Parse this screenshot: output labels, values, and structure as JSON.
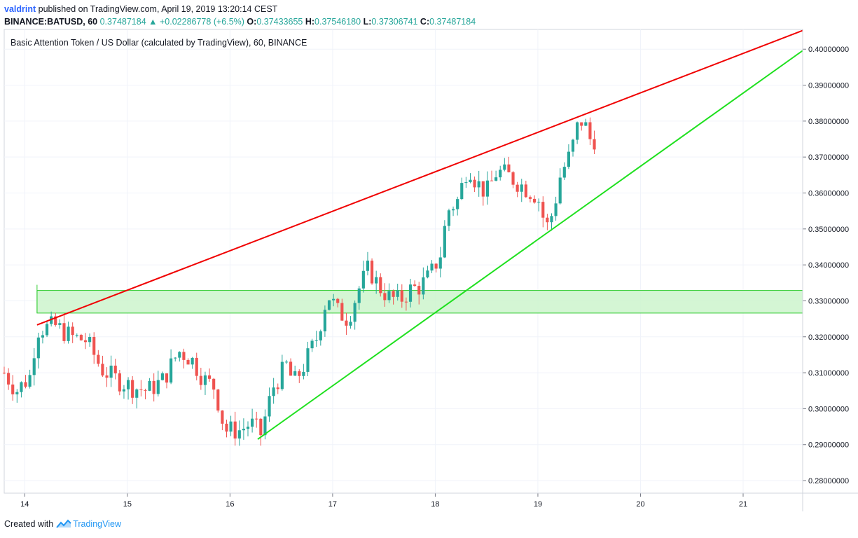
{
  "header": {
    "user": "valdrint",
    "published_text": "published on TradingView.com, April 19, 2019 13:20:14 CEST",
    "symbol": "BINANCE:BATUSD, 60",
    "last": "0.37487184",
    "arrow": "▲",
    "change": "+0.02286778 (+6.5%)",
    "o_label": "O:",
    "o_val": "0.37433655",
    "h_label": "H:",
    "h_val": "0.37546180",
    "l_label": "L:",
    "l_val": "0.37306741",
    "c_label": "C:",
    "c_val": "0.37487184"
  },
  "footer": {
    "created_with": "Created with",
    "brand": "TradingView"
  },
  "colors": {
    "up": "#26a69a",
    "down": "#ef5350",
    "resistance": "#f00000",
    "support": "#1fe01f",
    "zone_fill": "#ccf5cc",
    "zone_border": "#33cc33",
    "grid": "#f0f3fa",
    "axis_text": "#131722"
  },
  "chart_data": {
    "type": "candlestick",
    "title": "Basic Attention Token / US Dollar (calculated by TradingView), 60, BINANCE",
    "interval": "60",
    "ylim": [
      0.2765,
      0.4055
    ],
    "x_range_days": [
      13.8,
      21.58
    ],
    "yticks": [
      "0.28000000",
      "0.29000000",
      "0.30000000",
      "0.31000000",
      "0.32000000",
      "0.33000000",
      "0.34000000",
      "0.35000000",
      "0.36000000",
      "0.37000000",
      "0.38000000",
      "0.39000000",
      "0.40000000"
    ],
    "xticks": [
      {
        "day": 14,
        "label": "14"
      },
      {
        "day": 15,
        "label": "15"
      },
      {
        "day": 16,
        "label": "16"
      },
      {
        "day": 17,
        "label": "17"
      },
      {
        "day": 18,
        "label": "18"
      },
      {
        "day": 19,
        "label": "19"
      },
      {
        "day": 20,
        "label": "20"
      },
      {
        "day": 21,
        "label": "21"
      }
    ],
    "path": [
      [
        13.8,
        0.31
      ],
      [
        13.92,
        0.305
      ],
      [
        14.05,
        0.309
      ],
      [
        14.12,
        0.322
      ],
      [
        14.3,
        0.323
      ],
      [
        14.45,
        0.32
      ],
      [
        14.6,
        0.319
      ],
      [
        14.75,
        0.311
      ],
      [
        14.9,
        0.308
      ],
      [
        15.05,
        0.306
      ],
      [
        15.2,
        0.305
      ],
      [
        15.35,
        0.308
      ],
      [
        15.5,
        0.316
      ],
      [
        15.62,
        0.314
      ],
      [
        15.75,
        0.308
      ],
      [
        15.85,
        0.306
      ],
      [
        15.95,
        0.294
      ],
      [
        16.1,
        0.294
      ],
      [
        16.2,
        0.296
      ],
      [
        16.3,
        0.293
      ],
      [
        16.42,
        0.306
      ],
      [
        16.55,
        0.312
      ],
      [
        16.62,
        0.307
      ],
      [
        16.72,
        0.312
      ],
      [
        16.85,
        0.32
      ],
      [
        16.95,
        0.332
      ],
      [
        17.05,
        0.327
      ],
      [
        17.15,
        0.325
      ],
      [
        17.25,
        0.333
      ],
      [
        17.35,
        0.339
      ],
      [
        17.45,
        0.334
      ],
      [
        17.55,
        0.331
      ],
      [
        17.65,
        0.33
      ],
      [
        17.75,
        0.333
      ],
      [
        17.85,
        0.334
      ],
      [
        17.95,
        0.337
      ],
      [
        18.05,
        0.343
      ],
      [
        18.12,
        0.355
      ],
      [
        18.22,
        0.358
      ],
      [
        18.32,
        0.368
      ],
      [
        18.4,
        0.363
      ],
      [
        18.5,
        0.36
      ],
      [
        18.6,
        0.366
      ],
      [
        18.7,
        0.365
      ],
      [
        18.8,
        0.363
      ],
      [
        18.9,
        0.361
      ],
      [
        19.0,
        0.359
      ],
      [
        19.08,
        0.35
      ],
      [
        19.15,
        0.355
      ],
      [
        19.22,
        0.365
      ],
      [
        19.32,
        0.371
      ],
      [
        19.4,
        0.38
      ],
      [
        19.45,
        0.38
      ],
      [
        19.5,
        0.375
      ],
      [
        19.55,
        0.375
      ]
    ],
    "lines": [
      {
        "name": "Resistance",
        "color": "#f00000",
        "from": [
          14.12,
          0.3233
        ],
        "to": [
          21.58,
          0.4052
        ]
      },
      {
        "name": "Support",
        "color": "#1fe01f",
        "from": [
          16.27,
          0.2915
        ],
        "to": [
          21.58,
          0.3996
        ]
      }
    ],
    "zone": {
      "from_day": 14.12,
      "to_day": 21.58,
      "low": 0.3266,
      "high": 0.3329
    }
  }
}
